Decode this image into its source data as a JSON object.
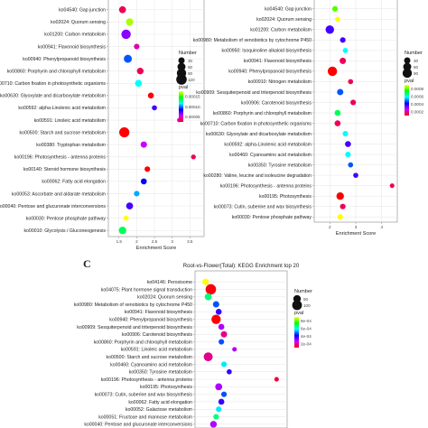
{
  "colors": {
    "grid": "#e6e6e6",
    "border": "#888888",
    "scale": [
      "#ff0000",
      "#cc00ff",
      "#0000ff",
      "#00ffff",
      "#00ff00",
      "#ffff00"
    ]
  },
  "chart_data": [
    {
      "panel": "",
      "type": "scatter",
      "title": "",
      "xlabel": "Enrichment Score",
      "xticks": [
        "1.5",
        "2",
        "2.5",
        "3",
        "3.5"
      ],
      "xlim": [
        1.2,
        3.9
      ],
      "legend": {
        "size_title": "Number",
        "size_levels": [
          "30",
          "60",
          "90",
          "120"
        ],
        "color_title": "pval",
        "color_ticks": [
          "0.00015",
          "0.00010",
          "0.00005"
        ]
      },
      "categories": [
        "ko04540: Gap junction",
        "ko02024: Quorum sensing",
        "ko01200: Carbon metabolism",
        "ko00941: Flavonoid biosynthesis",
        "ko00940: Phenylpropanoid biosynthesis",
        "ko00860: Porphyrin and chlorophyll metabolism",
        "ko00710: Carbon fixation in photosynthetic organisms",
        "ko00630: Glyoxylate and dicarboxylate metabolism",
        "ko00592: alpha-Linolenic acid metabolism",
        "ko00591: Linoleic acid metabolism",
        "ko00500: Starch and sucrose metabolism",
        "ko00380: Tryptophan metabolism",
        "ko00196: Photosynthesis - antenna proteins",
        "ko00140: Steroid hormone biosynthesis",
        "ko00062: Fatty acid elongation",
        "ko00053: Ascorbate and aldarate metabolism",
        "ko00040: Pentose and glucuronate interconversions",
        "ko00030: Pentose phosphate pathway",
        "ko00010: Glycolysis / Gluconeogenesis"
      ],
      "x": [
        1.6,
        1.8,
        1.7,
        2.0,
        1.75,
        2.1,
        2.05,
        2.4,
        2.5,
        3.2,
        1.65,
        2.2,
        3.6,
        2.3,
        2.2,
        2.0,
        1.8,
        1.7,
        1.6
      ],
      "size": [
        40,
        45,
        90,
        20,
        60,
        35,
        40,
        25,
        15,
        8,
        110,
        30,
        12,
        20,
        25,
        20,
        40,
        15,
        50
      ],
      "pval": [
        2e-05,
        0.00015,
        5e-05,
        3e-05,
        8e-05,
        2e-05,
        0.0001,
        1e-05,
        6e-05,
        3e-05,
        1e-05,
        4e-05,
        2e-05,
        1e-05,
        7e-05,
        9e-05,
        6e-05,
        0.00016,
        0.00012
      ]
    },
    {
      "panel": "",
      "type": "scatter",
      "title": "",
      "xlabel": "Enrichment Score",
      "xticks": [
        "2",
        "3",
        "4"
      ],
      "xlim": [
        1.4,
        4.6
      ],
      "legend": {
        "size_title": "Number",
        "size_levels": [
          "30",
          "60",
          "90"
        ],
        "color_title": "pval",
        "color_ticks": [
          "0.0008",
          "0.0006",
          "0.0004",
          "0.0002"
        ]
      },
      "categories": [
        "ko04540: Gap junction",
        "ko02024: Quorum sensing",
        "ko01200: Carbon metabolism",
        "ko00980: Metabolism of xenobiotics by cytochrome P450",
        "ko00950: Isoquinoline alkaloid biosynthesis",
        "ko00941: Flavonoid biosynthesis",
        "ko00940: Phenylpropanoid biosynthesis",
        "ko00910: Nitrogen metabolism",
        "ko00909: Sesquiterpenoid and triterpenoid biosynthesis",
        "ko00906: Carotenoid biosynthesis",
        "ko00860: Porphyrin and chlorophyll metabolism",
        "ko00710: Carbon fixation in photosynthetic organisms",
        "ko00630: Glyoxylate and dicarboxylate metabolism",
        "ko00592: alpha-Linolenic acid metabolism",
        "ko00460: Cyanoamino acid metabolism",
        "ko00350: Tyrosine metabolism",
        "ko00280: Valine, leucine and isoleucine degradation",
        "ko00196: Photosynthesis - antenna proteins",
        "ko00195: Photosynthesis",
        "ko00073: Cutin, suberine and wax biosynthesis",
        "ko00030: Pentose phosphate pathway"
      ],
      "x": [
        2.2,
        2.3,
        2.0,
        2.5,
        2.6,
        2.5,
        2.1,
        2.8,
        2.4,
        2.9,
        2.3,
        2.3,
        2.6,
        2.7,
        2.7,
        2.8,
        3.0,
        4.4,
        2.4,
        2.5,
        2.4
      ],
      "size": [
        20,
        15,
        70,
        20,
        15,
        30,
        90,
        15,
        30,
        20,
        25,
        25,
        20,
        25,
        20,
        15,
        15,
        10,
        50,
        20,
        20
      ],
      "pval": [
        0.0007,
        0.0008,
        0.0003,
        0.0003,
        0.0005,
        0.0001,
        5e-05,
        0.0001,
        0.0004,
        0.0001,
        0.0006,
        0.0001,
        0.0005,
        0.0003,
        0.0005,
        0.0004,
        0.0003,
        0.0001,
        5e-05,
        0.0001,
        0.0008
      ]
    },
    {
      "panel": "C",
      "type": "scatter",
      "title": "Root-vs-Flower(Total): KEGG Enrichment top 20",
      "xlabel": "",
      "xticks": [],
      "xlim": [
        1.5,
        5.0
      ],
      "legend": {
        "size_title": "Number",
        "size_levels": [
          "50",
          "100"
        ],
        "color_title": "pval",
        "color_ticks": [
          "8e-04",
          "6e-04",
          "4e-04",
          "2e-04"
        ]
      },
      "categories": [
        "ko04146: Peroxisome",
        "ko04075: Plant hormone signal transduction",
        "ko02024: Quorum sensing",
        "ko00980: Metabolism of xenobiotics by cytochrome P450",
        "ko00941: Flavonoid biosynthesis",
        "ko00940: Phenylpropanoid biosynthesis",
        "ko00909: Sesquiterpenoid and triterpenoid biosynthesis",
        "ko00906: Carotenoid biosynthesis",
        "ko00860: Porphyrin and chlorophyll metabolism",
        "ko00591: Linoleic acid metabolism",
        "ko00500: Starch and sucrose metabolism",
        "ko00460: Cyanoamino acid metabolism",
        "ko00350: Tyrosine metabolism",
        "ko00196: Photosynthesis - antenna proteins",
        "ko00195: Photosynthesis",
        "ko00073: Cutin, suberine and wax biosynthesis",
        "ko00062: Fatty acid elongation",
        "ko00052: Galactose metabolism",
        "ko00051: Fructose and mannose metabolism",
        "ko00040: Pentose and glucuronate interconversions"
      ],
      "x": [
        1.9,
        2.1,
        2.0,
        2.3,
        2.4,
        2.3,
        2.5,
        2.6,
        2.5,
        3.0,
        2.0,
        2.6,
        2.8,
        4.6,
        2.4,
        2.6,
        2.5,
        2.4,
        2.3,
        2.2
      ],
      "size": [
        30,
        120,
        40,
        30,
        25,
        90,
        25,
        30,
        20,
        10,
        80,
        20,
        15,
        10,
        40,
        20,
        25,
        20,
        20,
        35
      ],
      "pval": [
        0.00085,
        2e-05,
        0.0006,
        0.0004,
        0.0003,
        1e-05,
        0.0002,
        0.0001,
        0.0004,
        0.0002,
        0.0001,
        0.0005,
        0.0003,
        5e-05,
        0.0002,
        0.0004,
        0.0003,
        0.0005,
        0.0006,
        0.0002
      ]
    }
  ]
}
